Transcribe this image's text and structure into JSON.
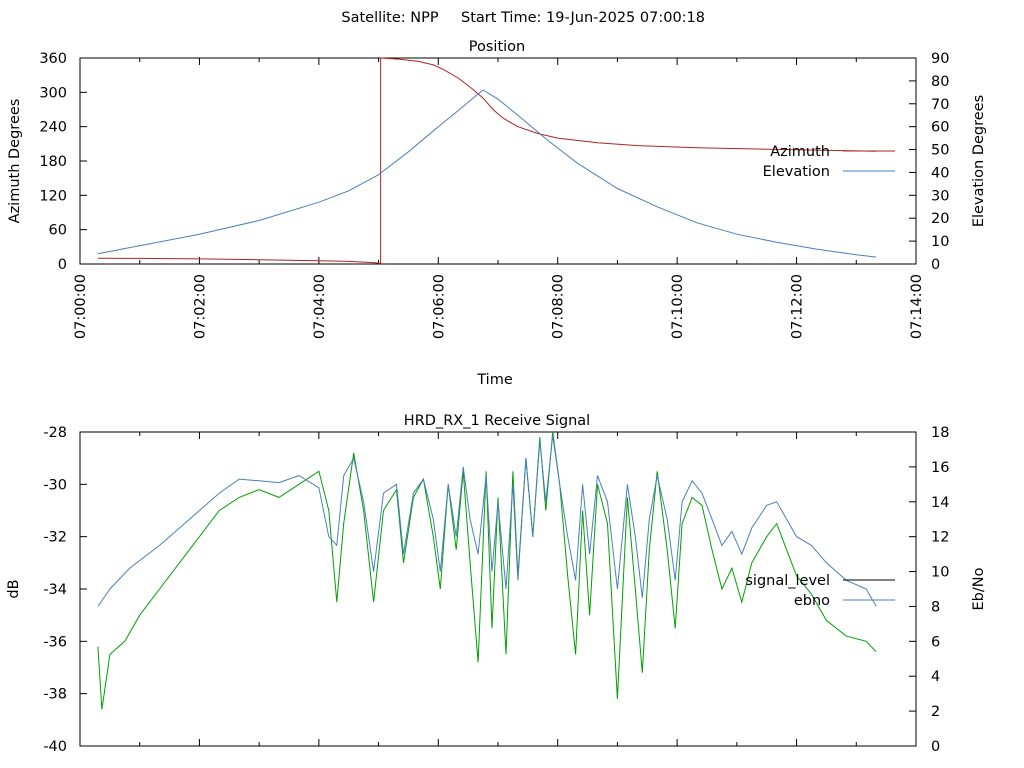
{
  "header": {
    "satellite": "Satellite: NPP",
    "start_time": "Start Time: 19-Jun-2025 07:00:18"
  },
  "chart_data": [
    {
      "type": "line",
      "title": "Position",
      "xlabel": "Time",
      "ylabel": "Azimuth Degrees",
      "y2label": "Elevation Degrees",
      "xlim": [
        0,
        840
      ],
      "ylim": [
        0,
        360
      ],
      "y2lim": [
        0,
        90
      ],
      "x_ticks": [
        0,
        120,
        240,
        360,
        480,
        600,
        720,
        840
      ],
      "x_tick_labels": [
        "07:00:00",
        "07:02:00",
        "07:04:00",
        "07:06:00",
        "07:08:00",
        "07:10:00",
        "07:12:00",
        "07:14:00"
      ],
      "y_ticks": [
        0,
        60,
        120,
        180,
        240,
        300,
        360
      ],
      "y2_ticks": [
        0,
        10,
        20,
        30,
        40,
        50,
        60,
        70,
        80,
        90
      ],
      "grid": false,
      "legend": "right",
      "series": [
        {
          "name": "Azimuth",
          "axis": "y",
          "color": "#b22222",
          "points": [
            [
              18,
              10
            ],
            [
              60,
              9.7
            ],
            [
              120,
              9
            ],
            [
              180,
              7.6
            ],
            [
              240,
              5.8
            ],
            [
              270,
              4.6
            ],
            [
              295,
              2.5
            ],
            [
              302,
              1
            ],
            [
              302,
              360
            ],
            [
              320,
              358
            ],
            [
              340,
              354
            ],
            [
              355,
              348
            ],
            [
              365,
              340
            ],
            [
              380,
              325
            ],
            [
              395,
              305
            ],
            [
              405,
              290
            ],
            [
              415,
              270
            ],
            [
              425,
              255
            ],
            [
              440,
              240
            ],
            [
              460,
              228
            ],
            [
              480,
              220
            ],
            [
              520,
              212
            ],
            [
              560,
              207
            ],
            [
              620,
              203
            ],
            [
              680,
              201
            ],
            [
              740,
              199
            ],
            [
              800,
              197
            ]
          ]
        },
        {
          "name": "Elevation",
          "axis": "y2",
          "color": "#4a7fbf",
          "points": [
            [
              18,
              4.5
            ],
            [
              60,
              8
            ],
            [
              120,
              13
            ],
            [
              180,
              19
            ],
            [
              240,
              27
            ],
            [
              270,
              32
            ],
            [
              300,
              39
            ],
            [
              330,
              49
            ],
            [
              360,
              60
            ],
            [
              380,
              67
            ],
            [
              395,
              72.5
            ],
            [
              405,
              76
            ],
            [
              420,
              72
            ],
            [
              440,
              65
            ],
            [
              470,
              54
            ],
            [
              500,
              44
            ],
            [
              540,
              33
            ],
            [
              580,
              25
            ],
            [
              620,
              18
            ],
            [
              660,
              13
            ],
            [
              700,
              9.5
            ],
            [
              740,
              6.5
            ],
            [
              780,
              4
            ],
            [
              800,
              3
            ]
          ]
        }
      ]
    },
    {
      "type": "line",
      "title": "HRD_RX_1 Receive Signal",
      "xlabel": "",
      "ylabel": "dB",
      "y2label": "Eb/No",
      "xlim": [
        0,
        840
      ],
      "ylim": [
        -40,
        -28
      ],
      "y2lim": [
        0,
        18
      ],
      "y_ticks": [
        -40,
        -38,
        -36,
        -34,
        -32,
        -30,
        -28
      ],
      "y2_ticks": [
        0,
        2,
        4,
        6,
        8,
        10,
        12,
        14,
        16,
        18
      ],
      "grid": false,
      "legend": "right",
      "series": [
        {
          "name": "signal_level",
          "axis": "y",
          "color": "#000000",
          "points": []
        },
        {
          "name": "ebno",
          "axis": "y2",
          "color": "#4a7fbf",
          "points": [
            [
              18,
              8
            ],
            [
              30,
              9
            ],
            [
              50,
              10.2
            ],
            [
              80,
              11.5
            ],
            [
              110,
              13
            ],
            [
              140,
              14.5
            ],
            [
              160,
              15.3
            ],
            [
              180,
              15.2
            ],
            [
              200,
              15.1
            ],
            [
              220,
              15.5
            ],
            [
              240,
              14.8
            ],
            [
              250,
              12
            ],
            [
              258,
              11.5
            ],
            [
              265,
              15.5
            ],
            [
              275,
              16.5
            ],
            [
              285,
              14
            ],
            [
              295,
              10
            ],
            [
              305,
              14.5
            ],
            [
              318,
              15
            ],
            [
              325,
              11
            ],
            [
              335,
              14.5
            ],
            [
              345,
              15.3
            ],
            [
              355,
              13
            ],
            [
              362,
              10
            ],
            [
              370,
              15
            ],
            [
              378,
              12
            ],
            [
              385,
              16
            ],
            [
              392,
              13
            ],
            [
              400,
              11
            ],
            [
              408,
              15.5
            ],
            [
              414,
              10
            ],
            [
              420,
              14
            ],
            [
              428,
              9
            ],
            [
              435,
              15
            ],
            [
              440,
              9.5
            ],
            [
              448,
              16.5
            ],
            [
              455,
              12
            ],
            [
              462,
              17.5
            ],
            [
              468,
              14
            ],
            [
              475,
              17.8
            ],
            [
              482,
              15
            ],
            [
              490,
              12
            ],
            [
              498,
              9.5
            ],
            [
              505,
              15
            ],
            [
              512,
              11
            ],
            [
              520,
              15.5
            ],
            [
              530,
              14
            ],
            [
              540,
              9
            ],
            [
              550,
              15
            ],
            [
              558,
              12
            ],
            [
              565,
              8.5
            ],
            [
              572,
              13
            ],
            [
              580,
              15.5
            ],
            [
              590,
              13
            ],
            [
              598,
              9.5
            ],
            [
              605,
              14
            ],
            [
              615,
              15.2
            ],
            [
              625,
              14.5
            ],
            [
              635,
              13
            ],
            [
              645,
              11.5
            ],
            [
              655,
              12.3
            ],
            [
              665,
              11
            ],
            [
              675,
              12.5
            ],
            [
              690,
              13.8
            ],
            [
              700,
              14
            ],
            [
              710,
              13
            ],
            [
              720,
              12
            ],
            [
              735,
              11.5
            ],
            [
              750,
              10.5
            ],
            [
              770,
              9.5
            ],
            [
              790,
              9
            ],
            [
              800,
              8
            ]
          ]
        }
      ],
      "extra_series": [
        {
          "color": "#00a000",
          "axis": "y",
          "points": [
            [
              18,
              -36.2
            ],
            [
              22,
              -38.6
            ],
            [
              30,
              -36.5
            ],
            [
              45,
              -36
            ],
            [
              60,
              -35
            ],
            [
              80,
              -34
            ],
            [
              100,
              -33
            ],
            [
              120,
              -32
            ],
            [
              140,
              -31
            ],
            [
              160,
              -30.5
            ],
            [
              180,
              -30.2
            ],
            [
              200,
              -30.5
            ],
            [
              220,
              -30
            ],
            [
              240,
              -29.5
            ],
            [
              250,
              -31
            ],
            [
              258,
              -34.5
            ],
            [
              265,
              -31.5
            ],
            [
              275,
              -28.8
            ],
            [
              285,
              -31
            ],
            [
              295,
              -34.5
            ],
            [
              305,
              -31
            ],
            [
              318,
              -30.2
            ],
            [
              325,
              -33
            ],
            [
              335,
              -30.5
            ],
            [
              345,
              -29.8
            ],
            [
              355,
              -32
            ],
            [
              362,
              -34
            ],
            [
              370,
              -30
            ],
            [
              378,
              -32.5
            ],
            [
              385,
              -29.5
            ],
            [
              392,
              -33
            ],
            [
              400,
              -36.8
            ],
            [
              408,
              -29.5
            ],
            [
              414,
              -35.5
            ],
            [
              420,
              -30.5
            ],
            [
              428,
              -36.5
            ],
            [
              435,
              -29.5
            ],
            [
              440,
              -33.5
            ],
            [
              448,
              -29
            ],
            [
              455,
              -32
            ],
            [
              462,
              -28.2
            ],
            [
              468,
              -31
            ],
            [
              475,
              -28
            ],
            [
              482,
              -30
            ],
            [
              490,
              -33.5
            ],
            [
              498,
              -36.5
            ],
            [
              505,
              -31
            ],
            [
              512,
              -35
            ],
            [
              520,
              -30
            ],
            [
              530,
              -31.5
            ],
            [
              540,
              -38.2
            ],
            [
              550,
              -30.5
            ],
            [
              558,
              -34
            ],
            [
              565,
              -37.2
            ],
            [
              572,
              -32.5
            ],
            [
              580,
              -29.5
            ],
            [
              590,
              -32.5
            ],
            [
              598,
              -35.5
            ],
            [
              605,
              -31.5
            ],
            [
              615,
              -30.5
            ],
            [
              625,
              -30.8
            ],
            [
              635,
              -32.5
            ],
            [
              645,
              -34
            ],
            [
              655,
              -33.2
            ],
            [
              665,
              -34.5
            ],
            [
              675,
              -33
            ],
            [
              690,
              -32
            ],
            [
              700,
              -31.5
            ],
            [
              710,
              -32.5
            ],
            [
              720,
              -33.5
            ],
            [
              735,
              -34.2
            ],
            [
              750,
              -35.2
            ],
            [
              770,
              -35.8
            ],
            [
              790,
              -36
            ],
            [
              800,
              -36.4
            ]
          ]
        }
      ]
    }
  ]
}
